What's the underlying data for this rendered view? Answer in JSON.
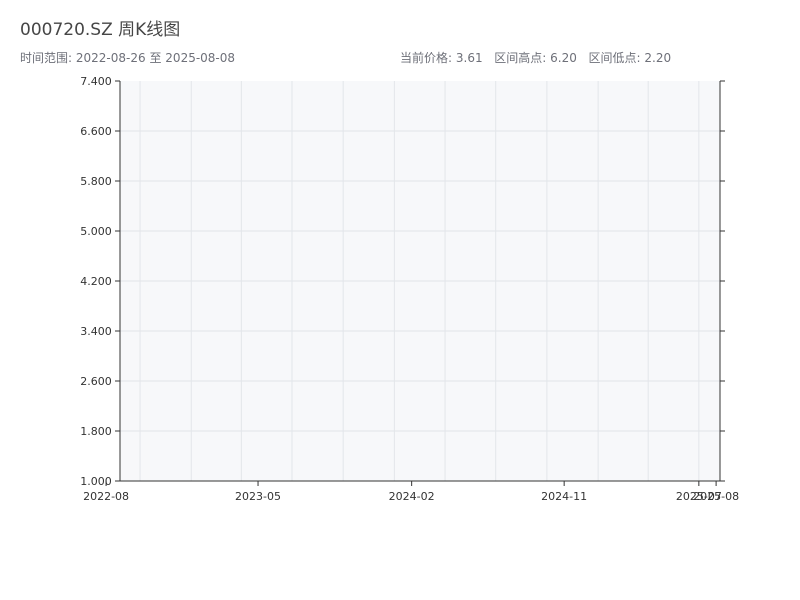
{
  "title": "000720.SZ 周K线图",
  "info": {
    "date_range_label": "时间范围:",
    "date_start": "2022-08-26",
    "date_range_joiner": "至",
    "date_end": "2025-08-08",
    "current_price_label": "当前价格:",
    "current_price": "3.61",
    "range_high_label": "区间高点:",
    "range_high": "6.20",
    "range_low_label": "区间低点:",
    "range_low": "2.20"
  },
  "chart_data": {
    "type": "candlestick",
    "title": "000720.SZ 周K线图",
    "xlabel": "",
    "ylabel": "",
    "ylim": [
      1.0,
      7.4
    ],
    "y_ticks": [
      1.0,
      1.8,
      2.6,
      3.4,
      4.2,
      5.0,
      5.8,
      6.6,
      7.4
    ],
    "y_tick_labels": [
      "1.000",
      "1.800",
      "2.600",
      "3.400",
      "4.200",
      "5.000",
      "5.800",
      "6.600",
      "7.400"
    ],
    "x_range": [
      "2022-08-26",
      "2025-08-08"
    ],
    "x_tick_labels": [
      "2022-08",
      "2023-05",
      "2024-02",
      "2024-11",
      "2025-07",
      "2025-08"
    ],
    "up_color": "#c0141c",
    "down_color": "#0e8a3a",
    "grid": true,
    "candles": []
  }
}
